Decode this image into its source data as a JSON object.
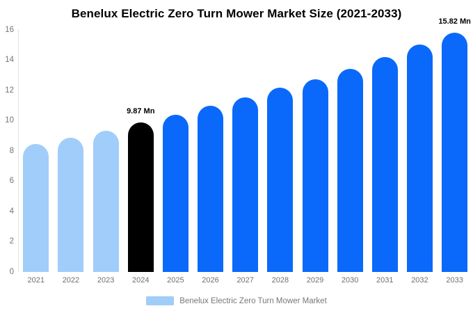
{
  "chart_data": {
    "type": "bar",
    "title": "Benelux Electric Zero Turn Mower Market Size (2021-2033)",
    "categories": [
      "2021",
      "2022",
      "2023",
      "2024",
      "2025",
      "2026",
      "2027",
      "2028",
      "2029",
      "2030",
      "2031",
      "2032",
      "2033"
    ],
    "values": [
      8.45,
      8.87,
      9.3,
      9.87,
      10.35,
      10.95,
      11.52,
      12.16,
      12.7,
      13.42,
      14.2,
      15.0,
      15.82
    ],
    "unit": "Mn",
    "bar_colors": [
      "#a0cdfa",
      "#a0cdfa",
      "#a0cdfa",
      "#000000",
      "#0a69fa",
      "#0a69fa",
      "#0a69fa",
      "#0a69fa",
      "#0a69fa",
      "#0a69fa",
      "#0a69fa",
      "#0a69fa",
      "#0a69fa"
    ],
    "annotations": [
      {
        "category": "2024",
        "text": "9.87 Mn"
      },
      {
        "category": "2033",
        "text": "15.82 Mn"
      }
    ],
    "y_ticks": [
      "0",
      "2",
      "4",
      "6",
      "8",
      "10",
      "12",
      "14",
      "16"
    ],
    "ylim": [
      0,
      16
    ],
    "xlabel": "",
    "ylabel": "",
    "grid": false,
    "legend_position": "bottom"
  },
  "legend": {
    "label": "Benelux Electric Zero Turn Mower Market",
    "swatch_color": "#a0cdfa"
  },
  "colors": {
    "series_light": "#a0cdfa",
    "series_main": "#0a69fa",
    "series_highlight": "#000000",
    "axis_text": "#757575",
    "x_label_text": "#6f6f6f",
    "legend_text": "#777777",
    "axis_line": "#e2e2e2",
    "title_text": "#000000",
    "background": "#ffffff"
  }
}
